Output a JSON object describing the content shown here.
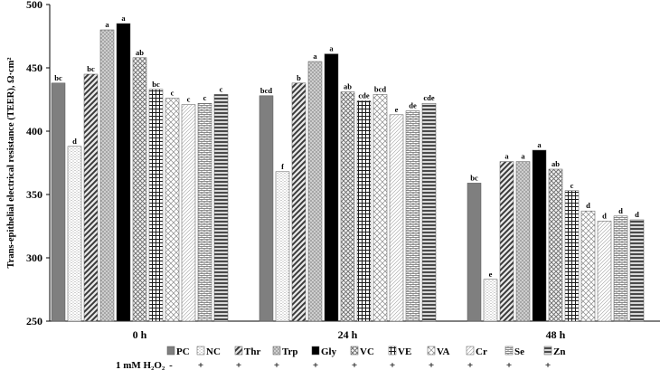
{
  "chart_data": {
    "type": "bar",
    "title": "",
    "xlabel": "",
    "ylabel": "Trans-epithelial electrical resistance (TEER), Ω·cm²",
    "ylim": [
      250,
      500
    ],
    "yticks": [
      250,
      300,
      350,
      400,
      450,
      500
    ],
    "grid": false,
    "legend_position": "bottom",
    "categories": [
      "0 h",
      "24 h",
      "48 h"
    ],
    "series": [
      {
        "name": "PC",
        "values": [
          438,
          428,
          359
        ],
        "sig": [
          "bc",
          "bcd",
          "bc"
        ]
      },
      {
        "name": "NC",
        "values": [
          388,
          368,
          283
        ],
        "sig": [
          "d",
          "f",
          "e"
        ]
      },
      {
        "name": "Thr",
        "values": [
          445,
          438,
          376
        ],
        "sig": [
          "bc",
          "b",
          "a"
        ]
      },
      {
        "name": "Trp",
        "values": [
          480,
          455,
          376
        ],
        "sig": [
          "a",
          "a",
          "a"
        ]
      },
      {
        "name": "Gly",
        "values": [
          485,
          461,
          385
        ],
        "sig": [
          "a",
          "a",
          "a"
        ]
      },
      {
        "name": "VC",
        "values": [
          458,
          431,
          370
        ],
        "sig": [
          "ab",
          "ab",
          "ab"
        ]
      },
      {
        "name": "VE",
        "values": [
          433,
          424,
          353
        ],
        "sig": [
          "bc",
          "cde",
          "c"
        ]
      },
      {
        "name": "VA",
        "values": [
          426,
          429,
          337
        ],
        "sig": [
          "c",
          "bcd",
          "d"
        ]
      },
      {
        "name": "Cr",
        "values": [
          421,
          413,
          329
        ],
        "sig": [
          "c",
          "e",
          "d"
        ]
      },
      {
        "name": "Se",
        "values": [
          422,
          416,
          333
        ],
        "sig": [
          "c",
          "de",
          "d"
        ]
      },
      {
        "name": "Zn",
        "values": [
          429,
          422,
          330
        ],
        "sig": [
          "c",
          "cde",
          "d"
        ]
      }
    ],
    "treatment_row": {
      "label": "1 mM H₂O₂",
      "values": [
        "-",
        "+",
        "+",
        "+",
        "+",
        "+",
        "+",
        "+",
        "+",
        "+",
        "+"
      ]
    }
  }
}
